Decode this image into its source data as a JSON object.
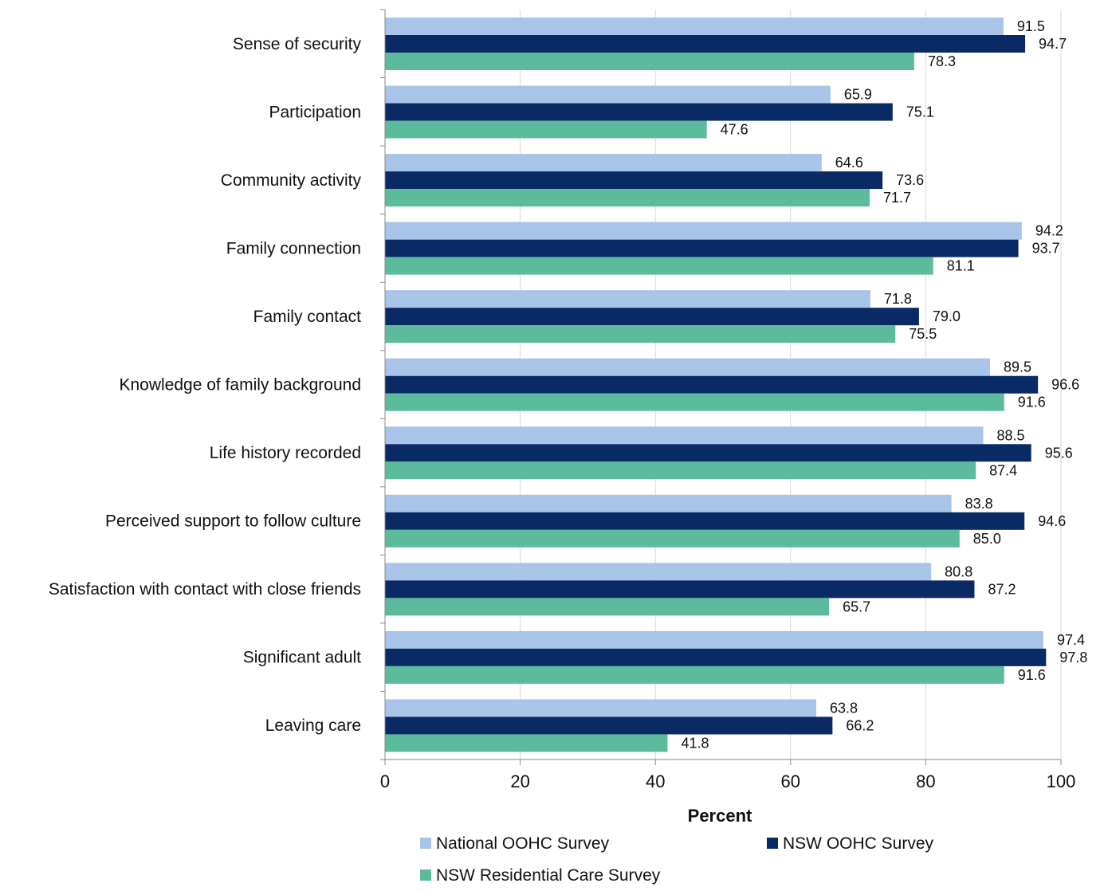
{
  "chart_data": {
    "type": "bar",
    "orientation": "horizontal",
    "categories": [
      "Sense of security",
      "Participation",
      "Community activity",
      "Family connection",
      "Family contact",
      "Knowledge of family background",
      "Life history recorded",
      "Perceived support to follow culture",
      "Satisfaction with contact with close friends",
      "Significant adult",
      "Leaving care"
    ],
    "series": [
      {
        "name": "National OOHC Survey",
        "color": "#a8c4e8",
        "values": [
          91.5,
          65.9,
          64.6,
          94.2,
          71.8,
          89.5,
          88.5,
          83.8,
          80.8,
          97.4,
          63.8
        ]
      },
      {
        "name": "NSW OOHC Survey",
        "color": "#0a2a66",
        "values": [
          94.7,
          75.1,
          73.6,
          93.7,
          79.0,
          96.6,
          95.6,
          94.6,
          87.2,
          97.8,
          66.2
        ]
      },
      {
        "name": "NSW Residential Care Survey",
        "color": "#5cbb9c",
        "values": [
          78.3,
          47.6,
          71.7,
          81.1,
          75.5,
          91.6,
          87.4,
          85.0,
          65.7,
          91.6,
          41.8
        ]
      }
    ],
    "xlabel": "Percent",
    "xlim": [
      0,
      100
    ],
    "xticks": [
      0,
      20,
      40,
      60,
      80,
      100
    ],
    "grid": true,
    "legend_position": "bottom"
  }
}
